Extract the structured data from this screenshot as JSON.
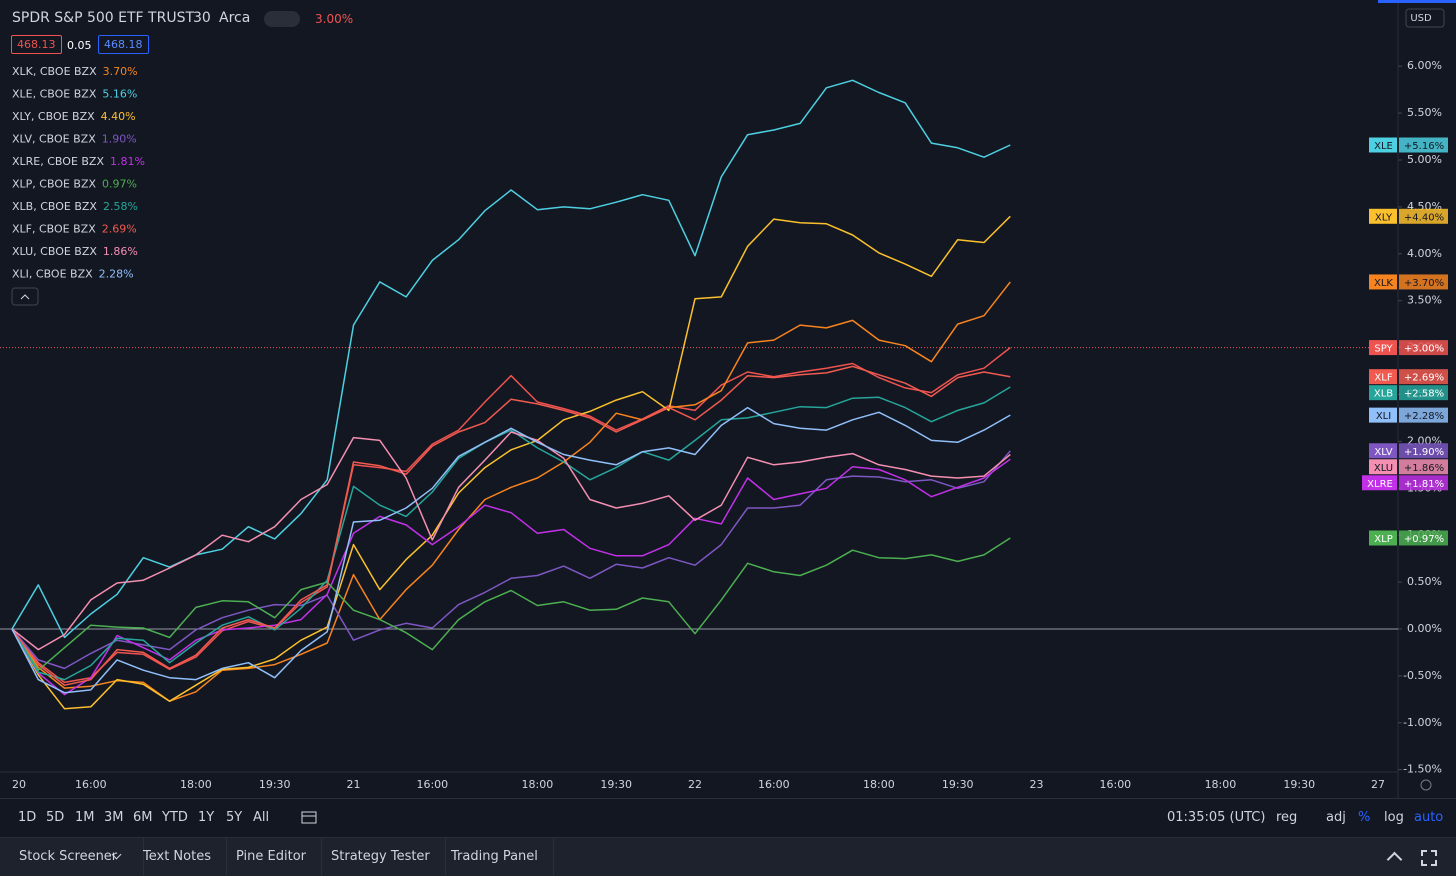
{
  "header": {
    "title": "SPDR S&P 500 ETF TRUST",
    "interval": "30",
    "exchange": "Arca",
    "change": "3.00%",
    "bid": "468.13",
    "spread": "0.05",
    "ask": "468.18",
    "currency": "USD"
  },
  "chart_data": {
    "type": "line",
    "categories": [
      "20",
      null,
      null,
      "16:00",
      null,
      null,
      null,
      "18:00",
      null,
      null,
      "19:30",
      null,
      null,
      "21",
      null,
      null,
      "16:00",
      null,
      null,
      null,
      "18:00",
      null,
      null,
      "19:30",
      null,
      null,
      "22",
      null,
      null,
      "16:00",
      null,
      null,
      null,
      "18:00",
      null,
      null,
      "19:30",
      null,
      null,
      "23",
      null,
      null,
      "16:00",
      null,
      null,
      null,
      "18:00",
      null,
      null,
      "19:30",
      null,
      null,
      "27"
    ],
    "ylim": [
      -1.525,
      6.706
    ],
    "yticks": [
      {
        "value": 6,
        "label": "6.00%"
      },
      {
        "value": 5.5,
        "label": "5.50%"
      },
      {
        "value": 5,
        "label": "5.00%"
      },
      {
        "value": 4.5,
        "label": "4.50%"
      },
      {
        "value": 4,
        "label": "4.00%"
      },
      {
        "value": 3.5,
        "label": "3.50%"
      },
      {
        "value": 3,
        "label": "3.00%"
      },
      {
        "value": 2.5,
        "label": "2.50%"
      },
      {
        "value": 2,
        "label": "2.00%"
      },
      {
        "value": 1.5,
        "label": "1.50%"
      },
      {
        "value": 1,
        "label": "1.00%"
      },
      {
        "value": 0.5,
        "label": "0.50%"
      },
      {
        "value": 0,
        "label": "0.00%"
      },
      {
        "value": -0.5,
        "label": "-0.50%"
      },
      {
        "value": -1,
        "label": "-1.00%"
      },
      {
        "value": -1.5,
        "label": "-1.50%"
      }
    ],
    "grid": false,
    "series": [
      {
        "name": "SPY",
        "color": "#ef5350",
        "price_line": true,
        "badge_label": "+3.00%",
        "values": [
          0,
          -0.36,
          -0.57,
          -0.52,
          -0.25,
          -0.27,
          -0.43,
          -0.3,
          -0.02,
          0.08,
          0.0,
          0.28,
          0.45,
          1.75,
          1.72,
          1.68,
          1.97,
          2.12,
          2.42,
          2.7,
          2.42,
          2.35,
          2.27,
          2.12,
          2.24,
          2.38,
          2.33,
          2.6,
          2.74,
          2.69,
          2.74,
          2.78,
          2.83,
          2.68,
          2.57,
          2.52,
          2.71,
          2.78,
          3.0,
          null,
          null,
          null,
          null,
          null,
          null,
          null,
          null,
          null,
          null,
          null,
          null,
          null,
          null
        ]
      },
      {
        "name": "XLK",
        "legend_name": "XLK, CBOE BZX",
        "change_label": "3.70%",
        "badge_label": "+3.70%",
        "color": "#f7841e",
        "values": [
          0,
          -0.41,
          -0.63,
          -0.61,
          -0.55,
          -0.57,
          -0.77,
          -0.67,
          -0.44,
          -0.42,
          -0.38,
          -0.27,
          -0.15,
          0.58,
          0.1,
          0.42,
          0.68,
          1.06,
          1.38,
          1.51,
          1.61,
          1.78,
          1.99,
          2.3,
          2.23,
          2.36,
          2.39,
          2.54,
          3.05,
          3.08,
          3.24,
          3.21,
          3.29,
          3.08,
          3.02,
          2.85,
          3.25,
          3.34,
          3.7,
          null,
          null,
          null,
          null,
          null,
          null,
          null,
          null,
          null,
          null,
          null,
          null,
          null,
          null
        ]
      },
      {
        "name": "XLE",
        "legend_name": "XLE, CBOE BZX",
        "change_label": "5.16%",
        "badge_label": "+5.16%",
        "color": "#4dd0e1",
        "values": [
          0,
          0.47,
          -0.09,
          0.16,
          0.37,
          0.76,
          0.66,
          0.79,
          0.85,
          1.09,
          0.96,
          1.23,
          1.59,
          3.24,
          3.7,
          3.54,
          3.93,
          4.15,
          4.46,
          4.68,
          4.47,
          4.5,
          4.48,
          4.55,
          4.63,
          4.57,
          3.98,
          4.82,
          5.27,
          5.32,
          5.39,
          5.77,
          5.85,
          5.72,
          5.61,
          5.18,
          5.13,
          5.03,
          5.16,
          null,
          null,
          null,
          null,
          null,
          null,
          null,
          null,
          null,
          null,
          null,
          null,
          null,
          null
        ]
      },
      {
        "name": "XLY",
        "legend_name": "XLY, CBOE BZX",
        "change_label": "4.40%",
        "badge_label": "+4.40%",
        "color": "#fbc02d",
        "values": [
          0,
          -0.49,
          -0.85,
          -0.83,
          -0.54,
          -0.59,
          -0.77,
          -0.6,
          -0.43,
          -0.41,
          -0.32,
          -0.12,
          0.02,
          0.9,
          0.42,
          0.74,
          1.0,
          1.45,
          1.72,
          1.91,
          2.01,
          2.23,
          2.32,
          2.44,
          2.53,
          2.33,
          3.52,
          3.54,
          4.08,
          4.37,
          4.33,
          4.32,
          4.2,
          4.01,
          3.89,
          3.76,
          4.15,
          4.12,
          4.4,
          null,
          null,
          null,
          null,
          null,
          null,
          null,
          null,
          null,
          null,
          null,
          null,
          null,
          null
        ]
      },
      {
        "name": "XLV",
        "legend_name": "XLV, CBOE BZX",
        "change_label": "1.90%",
        "badge_label": "+1.90%",
        "color": "#7e57c2",
        "values": [
          0,
          -0.33,
          -0.42,
          -0.26,
          -0.12,
          -0.17,
          -0.22,
          -0.01,
          0.12,
          0.2,
          0.26,
          0.25,
          0.36,
          -0.12,
          -0.01,
          0.06,
          0.01,
          0.26,
          0.39,
          0.54,
          0.57,
          0.67,
          0.54,
          0.69,
          0.65,
          0.76,
          0.68,
          0.9,
          1.29,
          1.29,
          1.32,
          1.59,
          1.63,
          1.62,
          1.57,
          1.59,
          1.5,
          1.57,
          1.9,
          null,
          null,
          null,
          null,
          null,
          null,
          null,
          null,
          null,
          null,
          null,
          null,
          null,
          null
        ]
      },
      {
        "name": "XLRE",
        "legend_name": "XLRE, CBOE BZX",
        "change_label": "1.81%",
        "badge_label": "+1.81%",
        "color": "#c231e8",
        "values": [
          0,
          -0.47,
          -0.7,
          -0.52,
          -0.07,
          -0.2,
          -0.33,
          -0.12,
          -0.01,
          0.01,
          0.04,
          0.1,
          0.37,
          1.02,
          1.2,
          1.11,
          0.9,
          1.09,
          1.32,
          1.24,
          1.02,
          1.06,
          0.86,
          0.78,
          0.78,
          0.9,
          1.18,
          1.12,
          1.61,
          1.38,
          1.44,
          1.5,
          1.73,
          1.7,
          1.59,
          1.41,
          1.51,
          1.61,
          1.81,
          null,
          null,
          null,
          null,
          null,
          null,
          null,
          null,
          null,
          null,
          null,
          null,
          null,
          null
        ]
      },
      {
        "name": "XLP",
        "legend_name": "XLP, CBOE BZX",
        "change_label": "0.97%",
        "badge_label": "+0.97%",
        "color": "#4caf50",
        "values": [
          0,
          -0.44,
          -0.2,
          0.04,
          0.02,
          0.01,
          -0.09,
          0.23,
          0.3,
          0.29,
          0.12,
          0.42,
          0.5,
          0.2,
          0.1,
          -0.04,
          -0.22,
          0.1,
          0.29,
          0.41,
          0.25,
          0.29,
          0.2,
          0.21,
          0.33,
          0.29,
          -0.05,
          0.31,
          0.7,
          0.61,
          0.57,
          0.68,
          0.84,
          0.76,
          0.75,
          0.79,
          0.72,
          0.79,
          0.97,
          null,
          null,
          null,
          null,
          null,
          null,
          null,
          null,
          null,
          null,
          null,
          null,
          null,
          null
        ]
      },
      {
        "name": "XLB",
        "legend_name": "XLB, CBOE BZX",
        "change_label": "2.58%",
        "badge_label": "+2.58%",
        "color": "#26a69a",
        "values": [
          0,
          -0.46,
          -0.54,
          -0.39,
          -0.1,
          -0.12,
          -0.36,
          -0.15,
          0.04,
          0.13,
          -0.01,
          0.22,
          0.52,
          1.52,
          1.32,
          1.2,
          1.46,
          1.82,
          1.99,
          2.12,
          1.93,
          1.78,
          1.59,
          1.72,
          1.89,
          1.8,
          2.01,
          2.23,
          2.25,
          2.31,
          2.37,
          2.36,
          2.46,
          2.47,
          2.36,
          2.21,
          2.33,
          2.41,
          2.58,
          null,
          null,
          null,
          null,
          null,
          null,
          null,
          null,
          null,
          null,
          null,
          null,
          null,
          null
        ]
      },
      {
        "name": "XLF",
        "legend_name": "XLF, CBOE BZX",
        "change_label": "2.69%",
        "badge_label": "+2.69%",
        "color": "#f05a4f",
        "values": [
          0,
          -0.38,
          -0.6,
          -0.54,
          -0.22,
          -0.25,
          -0.42,
          -0.28,
          0.01,
          0.1,
          0.01,
          0.31,
          0.47,
          1.78,
          1.74,
          1.65,
          1.95,
          2.1,
          2.2,
          2.45,
          2.4,
          2.33,
          2.25,
          2.1,
          2.23,
          2.36,
          2.23,
          2.44,
          2.7,
          2.68,
          2.71,
          2.73,
          2.8,
          2.71,
          2.62,
          2.48,
          2.68,
          2.74,
          2.69,
          null,
          null,
          null,
          null,
          null,
          null,
          null,
          null,
          null,
          null,
          null,
          null,
          null,
          null
        ]
      },
      {
        "name": "XLU",
        "legend_name": "XLU, CBOE BZX",
        "change_label": "1.86%",
        "badge_label": "+1.86%",
        "color": "#f48fb1",
        "values": [
          0,
          -0.22,
          -0.06,
          0.31,
          0.49,
          0.52,
          0.65,
          0.79,
          1.0,
          0.93,
          1.09,
          1.38,
          1.54,
          2.04,
          2.01,
          1.61,
          0.95,
          1.51,
          1.8,
          2.1,
          2.01,
          1.82,
          1.38,
          1.29,
          1.34,
          1.42,
          1.16,
          1.32,
          1.83,
          1.75,
          1.78,
          1.83,
          1.87,
          1.75,
          1.7,
          1.63,
          1.61,
          1.63,
          1.86,
          null,
          null,
          null,
          null,
          null,
          null,
          null,
          null,
          null,
          null,
          null,
          null,
          null,
          null
        ]
      },
      {
        "name": "XLI",
        "legend_name": "XLI, CBOE BZX",
        "change_label": "2.28%",
        "badge_label": "+2.28%",
        "color": "#90bff9",
        "values": [
          0,
          -0.54,
          -0.68,
          -0.65,
          -0.33,
          -0.44,
          -0.52,
          -0.54,
          -0.42,
          -0.36,
          -0.52,
          -0.23,
          -0.03,
          1.14,
          1.16,
          1.29,
          1.5,
          1.84,
          1.99,
          2.14,
          1.99,
          1.86,
          1.8,
          1.75,
          1.89,
          1.93,
          1.86,
          2.17,
          2.36,
          2.19,
          2.14,
          2.12,
          2.23,
          2.31,
          2.17,
          2.01,
          1.99,
          2.12,
          2.28,
          null,
          null,
          null,
          null,
          null,
          null,
          null,
          null,
          null,
          null,
          null,
          null,
          null,
          null
        ]
      }
    ]
  },
  "toolbar": {
    "ranges": [
      "1D",
      "5D",
      "1M",
      "3M",
      "6M",
      "YTD",
      "1Y",
      "5Y",
      "All"
    ],
    "clock": "01:35:05 (UTC)",
    "options": [
      {
        "label": "reg",
        "active": false
      },
      {
        "label": "adj",
        "active": false
      },
      {
        "label": "%",
        "active": true
      },
      {
        "label": "log",
        "active": false
      },
      {
        "label": "auto",
        "active": true
      }
    ]
  },
  "tabs": [
    "Stock Screener",
    "Text Notes",
    "Pine Editor",
    "Strategy Tester",
    "Trading Panel"
  ]
}
